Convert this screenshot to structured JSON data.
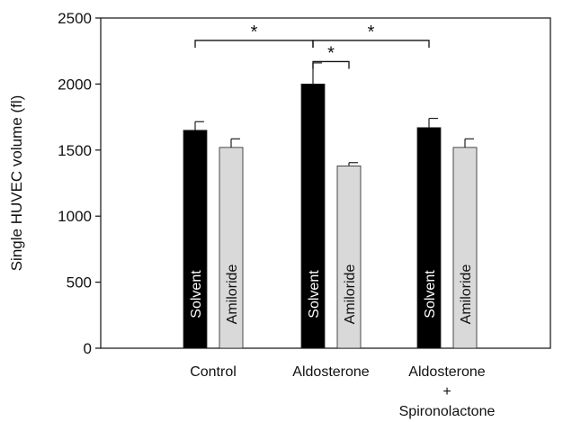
{
  "chart_data": {
    "type": "bar",
    "ylabel": "Single HUVEC volume (fl)",
    "ylim": [
      0,
      2500
    ],
    "yticks": [
      0,
      500,
      1000,
      1500,
      2000,
      2500
    ],
    "grid": false,
    "categories": [
      {
        "label_lines": [
          "Control"
        ]
      },
      {
        "label_lines": [
          "Aldosterone"
        ]
      },
      {
        "label_lines": [
          "Aldosterone",
          "+",
          "Spironolactone"
        ]
      }
    ],
    "series": [
      {
        "name": "Solvent",
        "color": "#000000",
        "label_color": "#ffffff",
        "values": [
          1650,
          2000,
          1670
        ],
        "errors": [
          65,
          160,
          70
        ]
      },
      {
        "name": "Amiloride",
        "color": "#d9d9d9",
        "label_color": "#111111",
        "values": [
          1520,
          1380,
          1520
        ],
        "errors": [
          65,
          25,
          65
        ]
      }
    ],
    "significance": [
      {
        "label": "*",
        "from": {
          "category": 0,
          "series": 0
        },
        "to": {
          "category": 1,
          "series": 0
        },
        "y": 2330
      },
      {
        "label": "*",
        "from": {
          "category": 1,
          "series": 0
        },
        "to": {
          "category": 2,
          "series": 0
        },
        "y": 2330
      },
      {
        "label": "*",
        "from": {
          "category": 1,
          "series": 0
        },
        "to": {
          "category": 1,
          "series": 1
        },
        "y": 2170
      }
    ]
  }
}
